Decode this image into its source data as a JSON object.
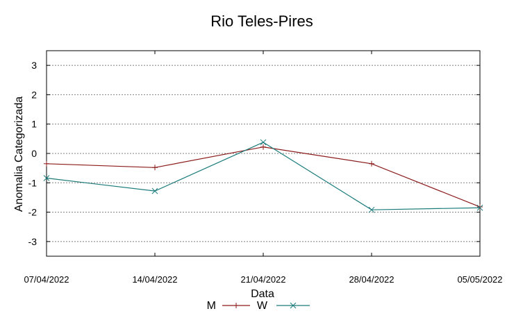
{
  "chart_data": {
    "type": "line",
    "title": "Rio Teles-Pires",
    "xlabel": "Data",
    "ylabel": "Anomalia Categorizada",
    "categories": [
      "07/04/2022",
      "14/04/2022",
      "21/04/2022",
      "28/04/2022",
      "05/05/2022"
    ],
    "ylim": [
      -3.5,
      3.5
    ],
    "yticks": [
      3,
      2,
      1,
      0,
      -1,
      -2,
      -3
    ],
    "ytick_labels": [
      "3",
      "2",
      "1",
      "0",
      "-1",
      "-2",
      "-3"
    ],
    "grid": true,
    "legend_position": "bottom",
    "series": [
      {
        "name": "M",
        "values": [
          -0.35,
          -0.48,
          0.22,
          -0.35,
          -1.82
        ],
        "color": "#8b1a1a",
        "marker": "plus"
      },
      {
        "name": "W",
        "values": [
          -0.84,
          -1.28,
          0.38,
          -1.92,
          -1.85
        ],
        "color": "#1a7a7a",
        "marker": "cross"
      }
    ]
  }
}
